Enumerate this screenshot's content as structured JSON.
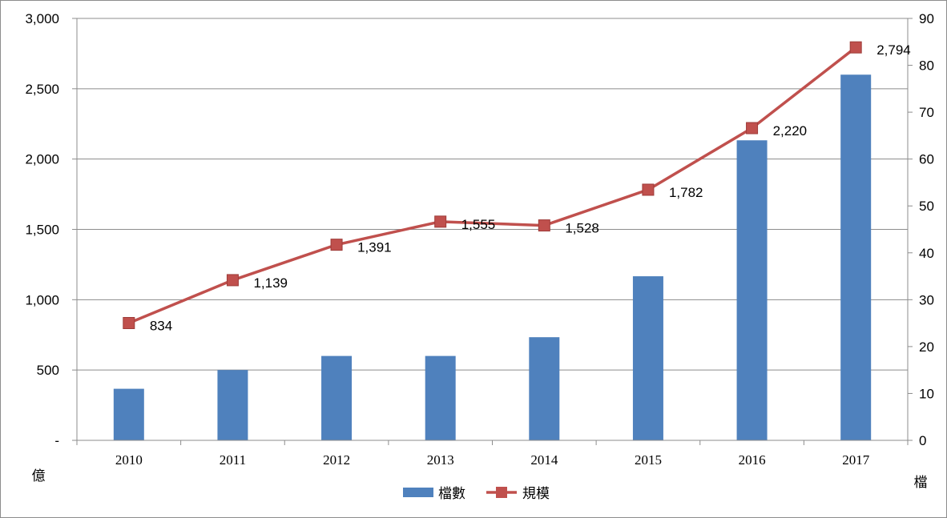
{
  "chart_data": {
    "type": "bar+line",
    "categories": [
      "2010",
      "2011",
      "2012",
      "2013",
      "2014",
      "2015",
      "2016",
      "2017"
    ],
    "series": [
      {
        "name": "檔數",
        "type": "bar",
        "axis": "right",
        "color": "#4F81BD",
        "values": [
          11,
          15,
          18,
          18,
          22,
          35,
          64,
          78
        ]
      },
      {
        "name": "規模",
        "type": "line",
        "axis": "left",
        "color": "#C0504D",
        "marker": "square",
        "values": [
          834,
          1139,
          1391,
          1555,
          1528,
          1782,
          2220,
          2794
        ],
        "labels": [
          "834",
          "1,139",
          "1,391",
          "1,555",
          "1,528",
          "1,782",
          "2,220",
          "2,794"
        ]
      }
    ],
    "y_left": {
      "unit_label": "億",
      "ylim": [
        0,
        3000
      ],
      "ticks": [
        0,
        500,
        1000,
        1500,
        2000,
        2500,
        3000
      ],
      "tick_labels": [
        "-",
        "500",
        "1,000",
        "1,500",
        "2,000",
        "2,500",
        "3,000"
      ]
    },
    "y_right": {
      "unit_label": "檔",
      "ylim": [
        0,
        90
      ],
      "ticks": [
        0,
        10,
        20,
        30,
        40,
        50,
        60,
        70,
        80,
        90
      ],
      "tick_labels": [
        "0",
        "10",
        "20",
        "30",
        "40",
        "50",
        "60",
        "70",
        "80",
        "90"
      ]
    },
    "grid": "horizontal",
    "legend": "bottom-center"
  }
}
